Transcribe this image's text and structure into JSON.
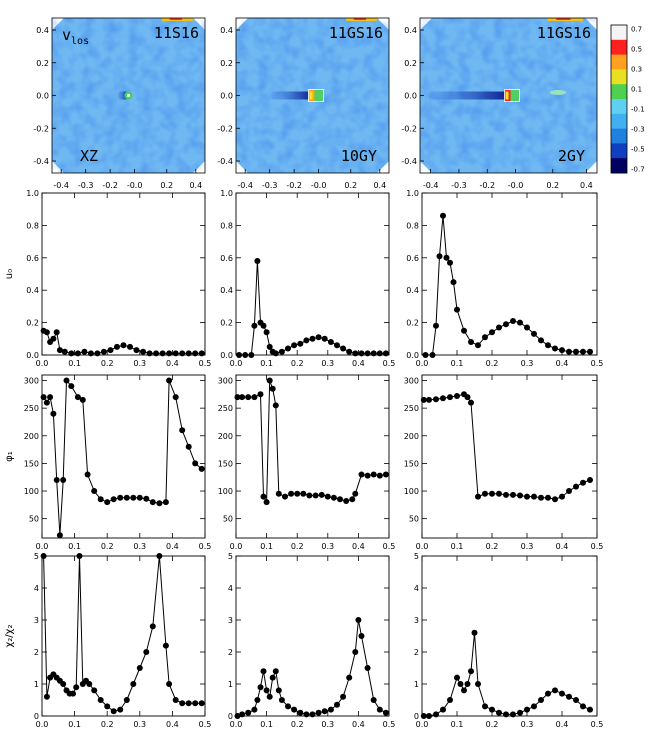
{
  "figure": {
    "columns": [
      "col1",
      "col2",
      "col3"
    ]
  },
  "colorbar": {
    "ticks": [
      "0.7",
      "0.5",
      "0.3",
      "0.1",
      "-0.1",
      "-0.3",
      "-0.5",
      "-0.7"
    ],
    "colors": [
      "#f4f4f4",
      "#ff2020",
      "#ffa020",
      "#e8e020",
      "#50d050",
      "#60d0f0",
      "#40b0f0",
      "#2080e0",
      "#1040c0",
      "#000060"
    ]
  },
  "maps": {
    "ticks": [
      "0.4",
      "0.2",
      "0.0",
      "-0.2",
      "-0.4"
    ],
    "xticks": [
      "-0.4",
      "-0.3",
      "-0.2",
      "-0.0",
      "0.2",
      "0.4"
    ],
    "panels": [
      {
        "label_top_left": "v",
        "label_top_left_sub": "los",
        "label_top_right": "11S16",
        "label_bottom": "XZ",
        "intensity": 0.15
      },
      {
        "label_top_right": "11GS16",
        "label_bottom": "10GY",
        "intensity": 0.6
      },
      {
        "label_top_right": "11GS16",
        "label_bottom": "2GY",
        "intensity": 1.0
      }
    ]
  },
  "chart_data": [
    {
      "type": "line",
      "row": "u0",
      "ylabel": "u₀",
      "xlim": [
        0,
        0.5
      ],
      "ylim": [
        0,
        1.0
      ],
      "xticks": [
        "0.0",
        "0.1",
        "0.2",
        "0.3",
        "0.4",
        "0.5"
      ],
      "yticks": [
        "0.0",
        "0.2",
        "0.4",
        "0.6",
        "0.8",
        "1.0"
      ],
      "series": [
        {
          "name": "11S16 XZ",
          "x": [
            0.005,
            0.015,
            0.025,
            0.035,
            0.045,
            0.055,
            0.07,
            0.09,
            0.11,
            0.13,
            0.15,
            0.17,
            0.19,
            0.21,
            0.23,
            0.25,
            0.27,
            0.29,
            0.31,
            0.33,
            0.35,
            0.37,
            0.39,
            0.41,
            0.43,
            0.45,
            0.47,
            0.49
          ],
          "y": [
            0.15,
            0.14,
            0.08,
            0.1,
            0.14,
            0.03,
            0.02,
            0.01,
            0.01,
            0.02,
            0.01,
            0.01,
            0.02,
            0.03,
            0.05,
            0.06,
            0.05,
            0.03,
            0.02,
            0.01,
            0.01,
            0.01,
            0.01,
            0.01,
            0.01,
            0.01,
            0.01,
            0.01
          ]
        },
        {
          "name": "11GS16 10GY",
          "x": [
            0.01,
            0.03,
            0.05,
            0.06,
            0.07,
            0.08,
            0.09,
            0.1,
            0.11,
            0.12,
            0.13,
            0.15,
            0.17,
            0.19,
            0.21,
            0.23,
            0.25,
            0.27,
            0.29,
            0.31,
            0.33,
            0.35,
            0.37,
            0.39,
            0.41,
            0.43,
            0.45,
            0.47,
            0.49
          ],
          "y": [
            0.0,
            0.0,
            0.0,
            0.18,
            0.58,
            0.2,
            0.18,
            0.14,
            0.05,
            0.02,
            0.01,
            0.02,
            0.04,
            0.06,
            0.07,
            0.09,
            0.1,
            0.11,
            0.1,
            0.08,
            0.06,
            0.04,
            0.02,
            0.01,
            0.01,
            0.01,
            0.01,
            0.01,
            0.01
          ]
        },
        {
          "name": "11GS16 2GY",
          "x": [
            0.01,
            0.03,
            0.04,
            0.05,
            0.06,
            0.07,
            0.08,
            0.09,
            0.1,
            0.12,
            0.14,
            0.16,
            0.18,
            0.2,
            0.22,
            0.24,
            0.26,
            0.28,
            0.3,
            0.32,
            0.34,
            0.36,
            0.38,
            0.4,
            0.42,
            0.44,
            0.46,
            0.48
          ],
          "y": [
            0.0,
            0.0,
            0.18,
            0.61,
            0.86,
            0.6,
            0.57,
            0.45,
            0.28,
            0.15,
            0.08,
            0.06,
            0.11,
            0.14,
            0.17,
            0.19,
            0.21,
            0.2,
            0.17,
            0.13,
            0.09,
            0.06,
            0.04,
            0.03,
            0.02,
            0.02,
            0.02,
            0.02
          ]
        }
      ]
    },
    {
      "type": "line",
      "row": "phi",
      "ylabel": "φ₁",
      "xlim": [
        0,
        0.5
      ],
      "ylim": [
        15,
        310
      ],
      "xticks": [
        "0.0",
        "0.1",
        "0.2",
        "0.3",
        "0.4",
        "0.5"
      ],
      "yticks": [
        "50",
        "100",
        "150",
        "200",
        "250",
        "300"
      ],
      "series": [
        {
          "name": "11S16 XZ",
          "x": [
            0.005,
            0.015,
            0.025,
            0.035,
            0.045,
            0.055,
            0.065,
            0.075,
            0.09,
            0.11,
            0.125,
            0.14,
            0.16,
            0.18,
            0.2,
            0.22,
            0.24,
            0.26,
            0.28,
            0.3,
            0.32,
            0.34,
            0.36,
            0.38,
            0.39,
            0.41,
            0.43,
            0.45,
            0.47,
            0.49
          ],
          "y": [
            270,
            260,
            270,
            240,
            120,
            20,
            120,
            300,
            290,
            270,
            265,
            130,
            100,
            85,
            80,
            85,
            88,
            88,
            88,
            88,
            86,
            80,
            78,
            80,
            300,
            270,
            210,
            180,
            150,
            140
          ]
        },
        {
          "name": "11GS16 10GY",
          "x": [
            0.005,
            0.02,
            0.04,
            0.06,
            0.08,
            0.09,
            0.1,
            0.11,
            0.12,
            0.13,
            0.14,
            0.16,
            0.18,
            0.2,
            0.22,
            0.24,
            0.26,
            0.28,
            0.3,
            0.32,
            0.34,
            0.36,
            0.38,
            0.39,
            0.41,
            0.43,
            0.45,
            0.47,
            0.49
          ],
          "y": [
            270,
            270,
            270,
            270,
            275,
            90,
            80,
            300,
            285,
            255,
            95,
            90,
            95,
            95,
            95,
            92,
            92,
            93,
            90,
            88,
            85,
            82,
            85,
            95,
            130,
            128,
            130,
            128,
            130
          ]
        },
        {
          "name": "11GS16 2GY",
          "x": [
            0.005,
            0.02,
            0.04,
            0.06,
            0.08,
            0.1,
            0.12,
            0.13,
            0.14,
            0.16,
            0.18,
            0.2,
            0.22,
            0.24,
            0.26,
            0.28,
            0.3,
            0.32,
            0.34,
            0.36,
            0.38,
            0.4,
            0.42,
            0.44,
            0.46,
            0.48
          ],
          "y": [
            265,
            265,
            266,
            268,
            270,
            272,
            275,
            270,
            260,
            90,
            95,
            95,
            95,
            93,
            93,
            92,
            90,
            90,
            88,
            88,
            85,
            90,
            100,
            108,
            115,
            120
          ]
        }
      ]
    },
    {
      "type": "line",
      "row": "ratio",
      "ylabel": "χ₂/χ₂",
      "xlim": [
        0,
        0.5
      ],
      "ylim": [
        0,
        5
      ],
      "xticks": [
        "0.0",
        "0.1",
        "0.2",
        "0.3",
        "0.4",
        "0.5"
      ],
      "yticks": [
        "0",
        "1",
        "2",
        "3",
        "4",
        "5"
      ],
      "series": [
        {
          "name": "11S16 XZ",
          "x": [
            0.005,
            0.015,
            0.025,
            0.035,
            0.045,
            0.055,
            0.065,
            0.075,
            0.085,
            0.095,
            0.105,
            0.115,
            0.125,
            0.135,
            0.145,
            0.16,
            0.18,
            0.2,
            0.22,
            0.24,
            0.26,
            0.28,
            0.3,
            0.32,
            0.34,
            0.36,
            0.38,
            0.39,
            0.41,
            0.43,
            0.45,
            0.47,
            0.49
          ],
          "y": [
            5,
            0.6,
            1.2,
            1.3,
            1.2,
            1.1,
            1.0,
            0.8,
            0.7,
            0.7,
            0.9,
            5.0,
            1.0,
            1.1,
            1.0,
            0.8,
            0.5,
            0.3,
            0.15,
            0.2,
            0.5,
            1.0,
            1.5,
            2.0,
            2.8,
            5.0,
            2.2,
            1.0,
            0.5,
            0.4,
            0.4,
            0.4,
            0.4
          ]
        },
        {
          "name": "11GS16 10GY",
          "x": [
            0.005,
            0.02,
            0.04,
            0.06,
            0.07,
            0.08,
            0.09,
            0.1,
            0.11,
            0.12,
            0.13,
            0.14,
            0.15,
            0.17,
            0.19,
            0.21,
            0.23,
            0.25,
            0.27,
            0.29,
            0.31,
            0.33,
            0.35,
            0.37,
            0.39,
            0.4,
            0.41,
            0.43,
            0.45,
            0.47,
            0.49
          ],
          "y": [
            0.0,
            0.05,
            0.1,
            0.2,
            0.5,
            0.9,
            1.4,
            0.8,
            0.6,
            1.2,
            1.4,
            0.8,
            0.5,
            0.3,
            0.2,
            0.1,
            0.05,
            0.05,
            0.1,
            0.15,
            0.2,
            0.35,
            0.6,
            1.2,
            2.0,
            3.0,
            2.5,
            1.5,
            0.5,
            0.2,
            0.1
          ]
        },
        {
          "name": "11GS16 2GY",
          "x": [
            0.005,
            0.02,
            0.04,
            0.06,
            0.08,
            0.1,
            0.11,
            0.12,
            0.13,
            0.14,
            0.15,
            0.16,
            0.18,
            0.2,
            0.22,
            0.24,
            0.26,
            0.28,
            0.3,
            0.32,
            0.34,
            0.36,
            0.38,
            0.4,
            0.42,
            0.44,
            0.46,
            0.48
          ],
          "y": [
            0.0,
            0.0,
            0.05,
            0.2,
            0.5,
            1.2,
            1.0,
            0.8,
            1.0,
            1.4,
            2.6,
            1.0,
            0.3,
            0.2,
            0.1,
            0.05,
            0.05,
            0.1,
            0.2,
            0.3,
            0.5,
            0.7,
            0.8,
            0.7,
            0.6,
            0.5,
            0.3,
            0.2
          ]
        }
      ]
    }
  ]
}
